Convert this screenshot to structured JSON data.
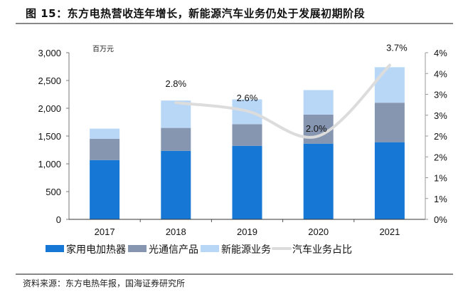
{
  "title": "图 15：东方电热营收连年增长，新能源汽车业务仍处于发展初期阶段",
  "source": "资料来源：东方电热年报，国海证券研究所",
  "chart_data": {
    "type": "bar",
    "stacked": true,
    "unit_label": "百万元",
    "categories": [
      "2017",
      "2018",
      "2019",
      "2020",
      "2021"
    ],
    "ylim": [
      0,
      3000
    ],
    "y_ticks": [
      "0",
      "500",
      "1,000",
      "1,500",
      "2,000",
      "2,500",
      "3,000"
    ],
    "y2lim": [
      0,
      4.0
    ],
    "y2_ticks": [
      "0%",
      "1%",
      "1%",
      "2%",
      "2%",
      "3%",
      "3%",
      "4%",
      "4%"
    ],
    "grid": false,
    "legend_position": "bottom",
    "series": [
      {
        "name": "家用电加热器",
        "color": "#1777d4",
        "values": [
          1067,
          1234,
          1324,
          1363,
          1389
        ]
      },
      {
        "name": "光通信产品",
        "color": "#8696b0",
        "values": [
          382,
          412,
          390,
          523,
          711
        ]
      },
      {
        "name": "新能源业务",
        "color": "#b8d7f7",
        "values": [
          184,
          493,
          446,
          441,
          639
        ]
      }
    ],
    "line_series": {
      "name": "汽车业务占比",
      "color": "#dcdcdc",
      "axis": "right",
      "values": [
        null,
        2.8,
        2.6,
        2.0,
        3.7
      ],
      "labels": [
        "",
        "2.8%",
        "2.6%",
        "2.0%",
        "3.7%"
      ]
    }
  }
}
